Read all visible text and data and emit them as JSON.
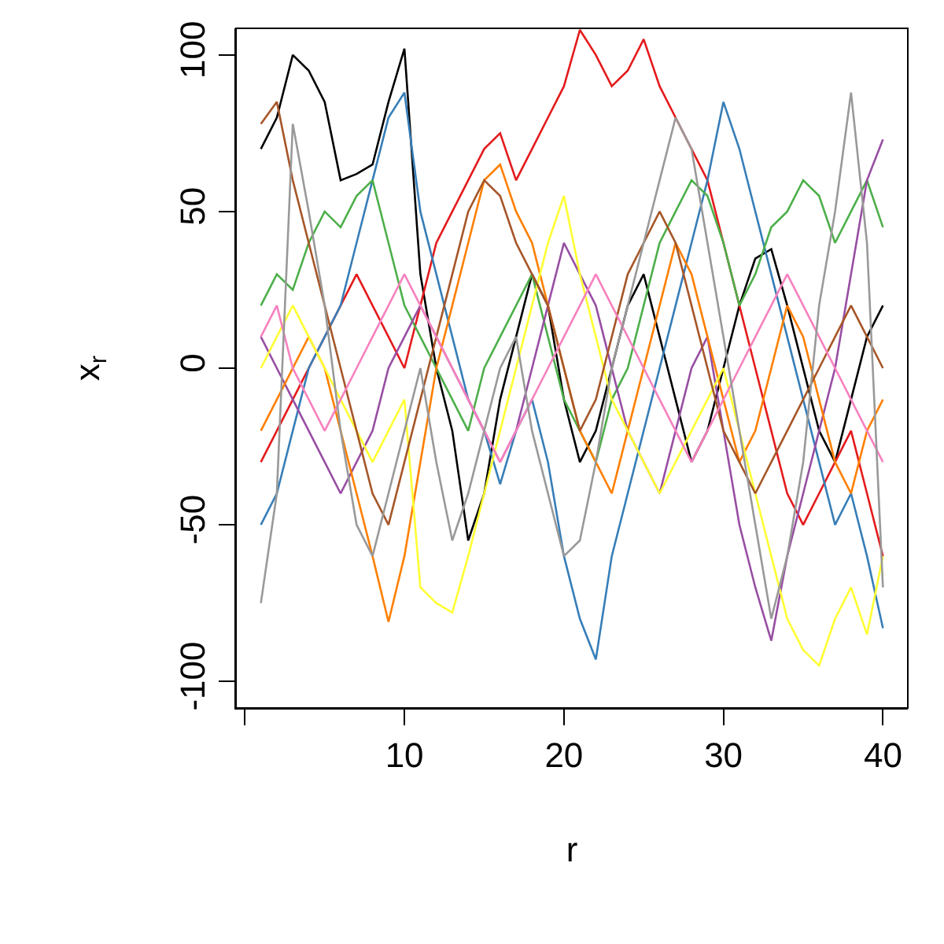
{
  "chart_data": {
    "type": "line",
    "xlabel": "r",
    "ylabel": "x$_{r}$",
    "x": [
      1,
      2,
      3,
      4,
      5,
      6,
      7,
      8,
      9,
      10,
      11,
      12,
      13,
      14,
      15,
      16,
      17,
      18,
      19,
      20,
      21,
      22,
      23,
      24,
      25,
      26,
      27,
      28,
      29,
      30,
      31,
      32,
      33,
      34,
      35,
      36,
      37,
      38,
      39,
      40
    ],
    "xlim": [
      -0.56,
      41.56
    ],
    "xticks": [
      {
        "value": 0,
        "label": null
      },
      10,
      20,
      30,
      40
    ],
    "ylim": [
      -108.5,
      108.5
    ],
    "yticks": [
      -100,
      -50,
      0,
      50,
      100
    ],
    "grid": false,
    "marker": "none",
    "line_style": "solid",
    "series": [
      {
        "color": "#000000",
        "values": [
          70,
          80,
          100,
          95,
          85,
          60,
          62,
          65,
          85,
          102,
          30,
          0,
          -20,
          -55,
          -40,
          -10,
          10,
          30,
          20,
          -10,
          -30,
          -20,
          0,
          20,
          30,
          10,
          -10,
          -30,
          -20,
          0,
          20,
          35,
          38,
          20,
          0,
          -20,
          -30,
          -10,
          10,
          20
        ]
      },
      {
        "color": "#e41a1c",
        "values": [
          -30,
          -20,
          -10,
          0,
          10,
          20,
          30,
          20,
          10,
          0,
          20,
          40,
          50,
          60,
          70,
          75,
          60,
          70,
          80,
          90,
          108,
          100,
          90,
          95,
          105,
          90,
          80,
          70,
          60,
          40,
          20,
          0,
          -20,
          -40,
          -50,
          -40,
          -30,
          -20,
          -40,
          -60
        ]
      },
      {
        "color": "#377eb8",
        "values": [
          -50,
          -40,
          -20,
          0,
          10,
          20,
          40,
          60,
          80,
          88,
          50,
          30,
          10,
          -10,
          -20,
          -37,
          -20,
          -10,
          -30,
          -60,
          -80,
          -93,
          -60,
          -40,
          -20,
          0,
          20,
          40,
          60,
          85,
          70,
          50,
          30,
          10,
          -10,
          -30,
          -50,
          -40,
          -60,
          -83
        ]
      },
      {
        "color": "#4daf4a",
        "values": [
          20,
          30,
          25,
          40,
          50,
          45,
          55,
          60,
          40,
          20,
          10,
          0,
          -10,
          -20,
          0,
          10,
          20,
          30,
          10,
          -10,
          -20,
          -30,
          -10,
          0,
          20,
          40,
          50,
          60,
          55,
          40,
          20,
          30,
          45,
          50,
          60,
          55,
          40,
          50,
          60,
          45
        ]
      },
      {
        "color": "#984ea3",
        "values": [
          10,
          0,
          -10,
          -20,
          -30,
          -40,
          -30,
          -20,
          0,
          10,
          20,
          10,
          0,
          -10,
          -20,
          -30,
          -20,
          0,
          20,
          40,
          30,
          20,
          0,
          -20,
          -30,
          -40,
          -20,
          0,
          10,
          -20,
          -50,
          -70,
          -87,
          -60,
          -40,
          -20,
          0,
          30,
          60,
          73
        ]
      },
      {
        "color": "#ff7f00",
        "values": [
          -20,
          -10,
          0,
          10,
          0,
          -20,
          -40,
          -60,
          -81,
          -60,
          -30,
          0,
          20,
          40,
          60,
          65,
          50,
          40,
          20,
          0,
          -20,
          -30,
          -40,
          -20,
          0,
          20,
          40,
          30,
          10,
          -10,
          -30,
          -20,
          0,
          20,
          10,
          -10,
          -30,
          -40,
          -20,
          -10
        ]
      },
      {
        "color": "#ffff33",
        "values": [
          0,
          10,
          20,
          10,
          0,
          -10,
          -20,
          -30,
          -20,
          -10,
          -70,
          -75,
          -78,
          -60,
          -40,
          -20,
          0,
          20,
          40,
          55,
          30,
          10,
          -10,
          -20,
          -30,
          -40,
          -30,
          -20,
          -10,
          0,
          -20,
          -40,
          -60,
          -80,
          -90,
          -95,
          -80,
          -70,
          -85,
          -60
        ]
      },
      {
        "color": "#a65628",
        "values": [
          78,
          85,
          60,
          40,
          20,
          0,
          -20,
          -40,
          -50,
          -30,
          -10,
          10,
          30,
          50,
          60,
          55,
          40,
          30,
          20,
          0,
          -20,
          -10,
          10,
          30,
          40,
          50,
          40,
          20,
          0,
          -20,
          -30,
          -40,
          -30,
          -20,
          -10,
          0,
          10,
          20,
          10,
          0
        ]
      },
      {
        "color": "#f781bf",
        "values": [
          10,
          20,
          0,
          -10,
          -20,
          -10,
          0,
          10,
          20,
          30,
          20,
          10,
          0,
          -10,
          -20,
          -30,
          -20,
          -10,
          0,
          10,
          20,
          30,
          20,
          10,
          0,
          -10,
          -20,
          -30,
          -20,
          -10,
          0,
          10,
          20,
          30,
          20,
          10,
          0,
          -10,
          -20,
          -30
        ]
      },
      {
        "color": "#999999",
        "values": [
          -75,
          -40,
          78,
          50,
          20,
          -20,
          -50,
          -60,
          -40,
          -20,
          0,
          -30,
          -55,
          -40,
          -20,
          0,
          10,
          -20,
          -40,
          -60,
          -55,
          -30,
          0,
          20,
          40,
          60,
          80,
          70,
          40,
          10,
          -20,
          -50,
          -80,
          -60,
          -30,
          20,
          50,
          88,
          40,
          -70
        ]
      }
    ]
  }
}
